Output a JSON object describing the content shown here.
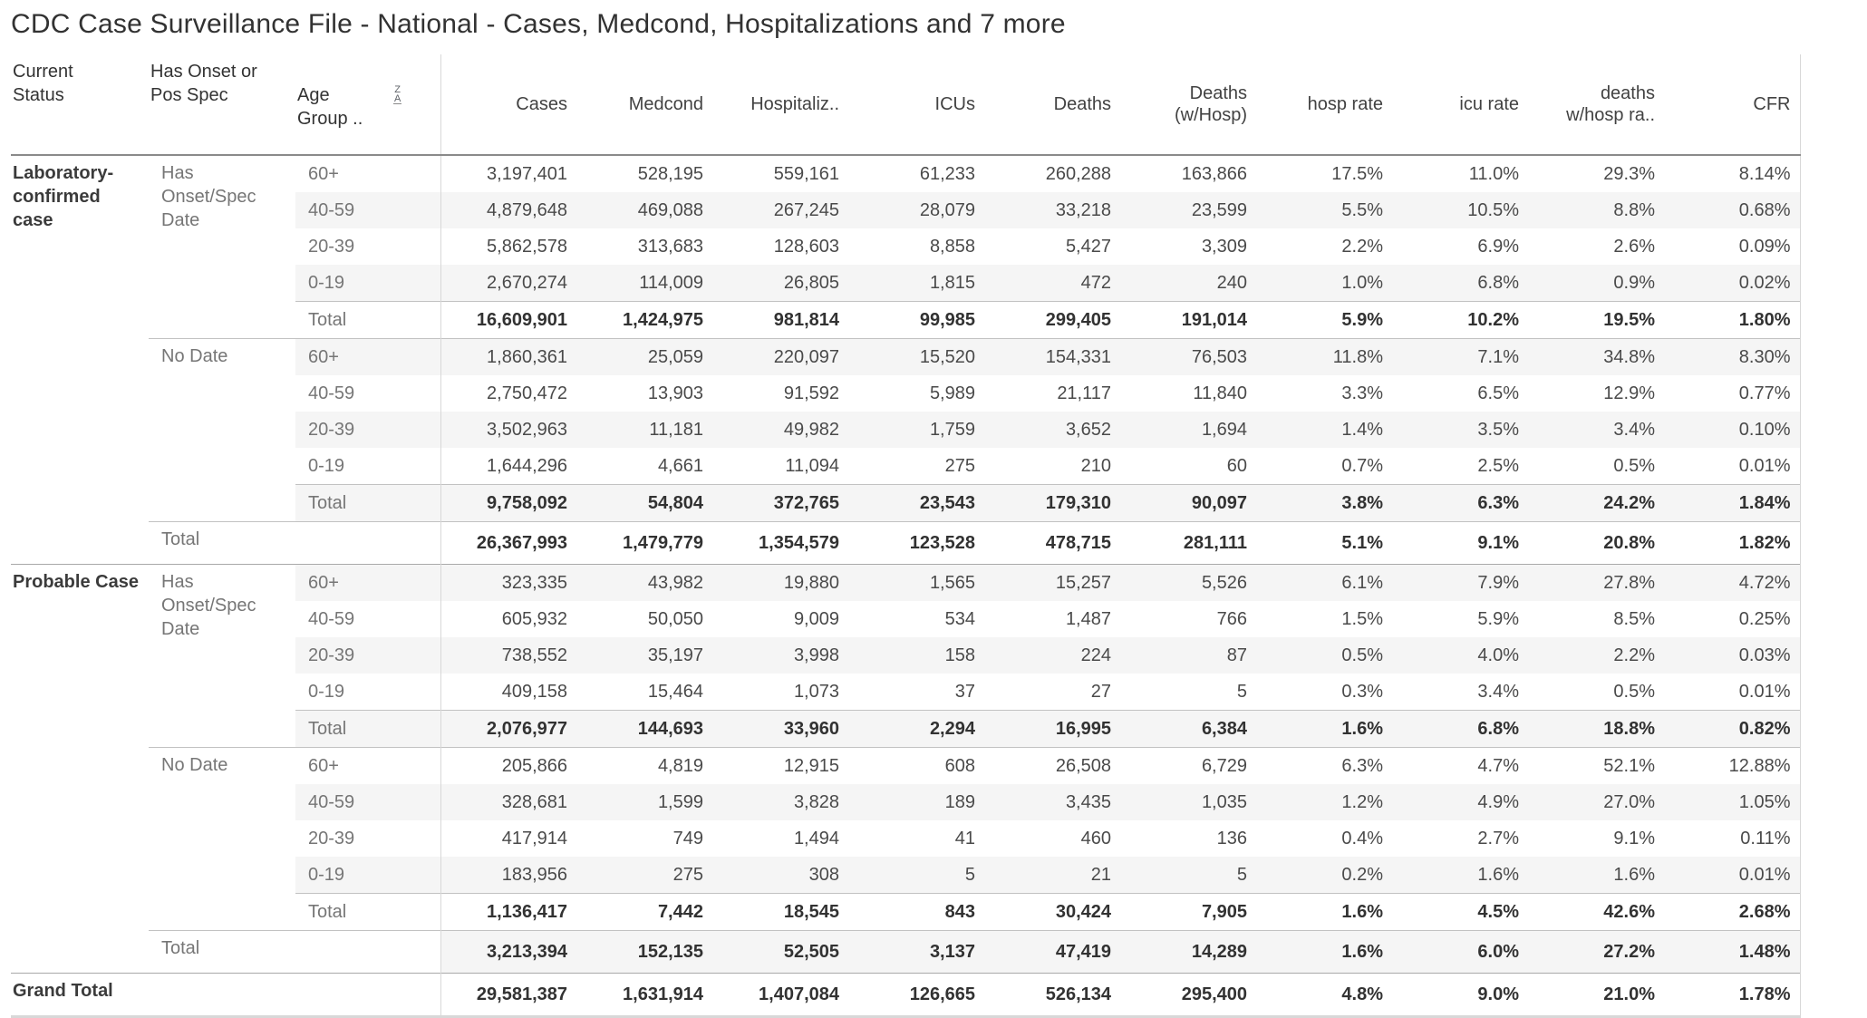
{
  "title": "CDC Case Surveillance File - National - Cases, Medcond, Hospitalizations and 7 more",
  "table": {
    "row_headers": [
      "Current\nStatus",
      "Has Onset or\nPos Spec",
      "Age\nGroup .."
    ],
    "sort_icon": {
      "top": "Z",
      "bottom": "A"
    },
    "measure_headers": [
      "Cases",
      "Medcond",
      "Hospitaliz..",
      "ICUs",
      "Deaths",
      "Deaths\n(w/Hosp)",
      "hosp rate",
      "icu rate",
      "deaths\nw/hosp ra..",
      "CFR"
    ],
    "rows": [
      {
        "status": "Laboratory-confirmed case",
        "status_span": 11,
        "onset": "Has Onset/Spec Date",
        "onset_span": 5,
        "age": "60+",
        "cells": [
          "3,197,401",
          "528,195",
          "559,161",
          "61,233",
          "260,288",
          "163,866",
          "17.5%",
          "11.0%",
          "29.3%",
          "8.14%"
        ]
      },
      {
        "age": "40-59",
        "cells": [
          "4,879,648",
          "469,088",
          "267,245",
          "28,079",
          "33,218",
          "23,599",
          "5.5%",
          "10.5%",
          "8.8%",
          "0.68%"
        ]
      },
      {
        "age": "20-39",
        "cells": [
          "5,862,578",
          "313,683",
          "128,603",
          "8,858",
          "5,427",
          "3,309",
          "2.2%",
          "6.9%",
          "2.6%",
          "0.09%"
        ]
      },
      {
        "age": "0-19",
        "cells": [
          "2,670,274",
          "114,009",
          "26,805",
          "1,815",
          "472",
          "240",
          "1.0%",
          "6.8%",
          "0.9%",
          "0.02%"
        ]
      },
      {
        "age": "Total",
        "bold": true,
        "sep": "light",
        "cells": [
          "16,609,901",
          "1,424,975",
          "981,814",
          "99,985",
          "299,405",
          "191,014",
          "5.9%",
          "10.2%",
          "19.5%",
          "1.80%"
        ]
      },
      {
        "onset": "No Date",
        "onset_span": 5,
        "age": "60+",
        "sep": "light",
        "cells": [
          "1,860,361",
          "25,059",
          "220,097",
          "15,520",
          "154,331",
          "76,503",
          "11.8%",
          "7.1%",
          "34.8%",
          "8.30%"
        ]
      },
      {
        "age": "40-59",
        "cells": [
          "2,750,472",
          "13,903",
          "91,592",
          "5,989",
          "21,117",
          "11,840",
          "3.3%",
          "6.5%",
          "12.9%",
          "0.77%"
        ]
      },
      {
        "age": "20-39",
        "cells": [
          "3,502,963",
          "11,181",
          "49,982",
          "1,759",
          "3,652",
          "1,694",
          "1.4%",
          "3.5%",
          "3.4%",
          "0.10%"
        ]
      },
      {
        "age": "0-19",
        "cells": [
          "1,644,296",
          "4,661",
          "11,094",
          "275",
          "210",
          "60",
          "0.7%",
          "2.5%",
          "0.5%",
          "0.01%"
        ]
      },
      {
        "age": "Total",
        "bold": true,
        "sep": "light",
        "cells": [
          "9,758,092",
          "54,804",
          "372,765",
          "23,543",
          "179,310",
          "90,097",
          "3.8%",
          "6.3%",
          "24.2%",
          "1.84%"
        ]
      },
      {
        "onset": "Total",
        "onset_colspan": 2,
        "bold": true,
        "sep": "light",
        "cells": [
          "26,367,993",
          "1,479,779",
          "1,354,579",
          "123,528",
          "478,715",
          "281,111",
          "5.1%",
          "9.1%",
          "20.8%",
          "1.82%"
        ]
      },
      {
        "status": "Probable Case",
        "status_span": 11,
        "onset": "Has Onset/Spec Date",
        "onset_span": 5,
        "age": "60+",
        "sep": "dark",
        "cells": [
          "323,335",
          "43,982",
          "19,880",
          "1,565",
          "15,257",
          "5,526",
          "6.1%",
          "7.9%",
          "27.8%",
          "4.72%"
        ]
      },
      {
        "age": "40-59",
        "cells": [
          "605,932",
          "50,050",
          "9,009",
          "534",
          "1,487",
          "766",
          "1.5%",
          "5.9%",
          "8.5%",
          "0.25%"
        ]
      },
      {
        "age": "20-39",
        "cells": [
          "738,552",
          "35,197",
          "3,998",
          "158",
          "224",
          "87",
          "0.5%",
          "4.0%",
          "2.2%",
          "0.03%"
        ]
      },
      {
        "age": "0-19",
        "cells": [
          "409,158",
          "15,464",
          "1,073",
          "37",
          "27",
          "5",
          "0.3%",
          "3.4%",
          "0.5%",
          "0.01%"
        ]
      },
      {
        "age": "Total",
        "bold": true,
        "sep": "light",
        "cells": [
          "2,076,977",
          "144,693",
          "33,960",
          "2,294",
          "16,995",
          "6,384",
          "1.6%",
          "6.8%",
          "18.8%",
          "0.82%"
        ]
      },
      {
        "onset": "No Date",
        "onset_span": 5,
        "age": "60+",
        "sep": "light",
        "cells": [
          "205,866",
          "4,819",
          "12,915",
          "608",
          "26,508",
          "6,729",
          "6.3%",
          "4.7%",
          "52.1%",
          "12.88%"
        ]
      },
      {
        "age": "40-59",
        "cells": [
          "328,681",
          "1,599",
          "3,828",
          "189",
          "3,435",
          "1,035",
          "1.2%",
          "4.9%",
          "27.0%",
          "1.05%"
        ]
      },
      {
        "age": "20-39",
        "cells": [
          "417,914",
          "749",
          "1,494",
          "41",
          "460",
          "136",
          "0.4%",
          "2.7%",
          "9.1%",
          "0.11%"
        ]
      },
      {
        "age": "0-19",
        "cells": [
          "183,956",
          "275",
          "308",
          "5",
          "21",
          "5",
          "0.2%",
          "1.6%",
          "1.6%",
          "0.01%"
        ]
      },
      {
        "age": "Total",
        "bold": true,
        "sep": "light",
        "cells": [
          "1,136,417",
          "7,442",
          "18,545",
          "843",
          "30,424",
          "7,905",
          "1.6%",
          "4.5%",
          "42.6%",
          "2.68%"
        ]
      },
      {
        "onset": "Total",
        "onset_colspan": 2,
        "bold": true,
        "sep": "light",
        "cells": [
          "3,213,394",
          "152,135",
          "52,505",
          "3,137",
          "47,419",
          "14,289",
          "1.6%",
          "6.0%",
          "27.2%",
          "1.48%"
        ]
      },
      {
        "status": "Grand Total",
        "status_colspan": 3,
        "bold": true,
        "sep": "dark",
        "cells": [
          "29,581,387",
          "1,631,914",
          "1,407,084",
          "126,665",
          "526,134",
          "295,400",
          "4.8%",
          "9.0%",
          "21.0%",
          "1.78%"
        ]
      }
    ]
  }
}
